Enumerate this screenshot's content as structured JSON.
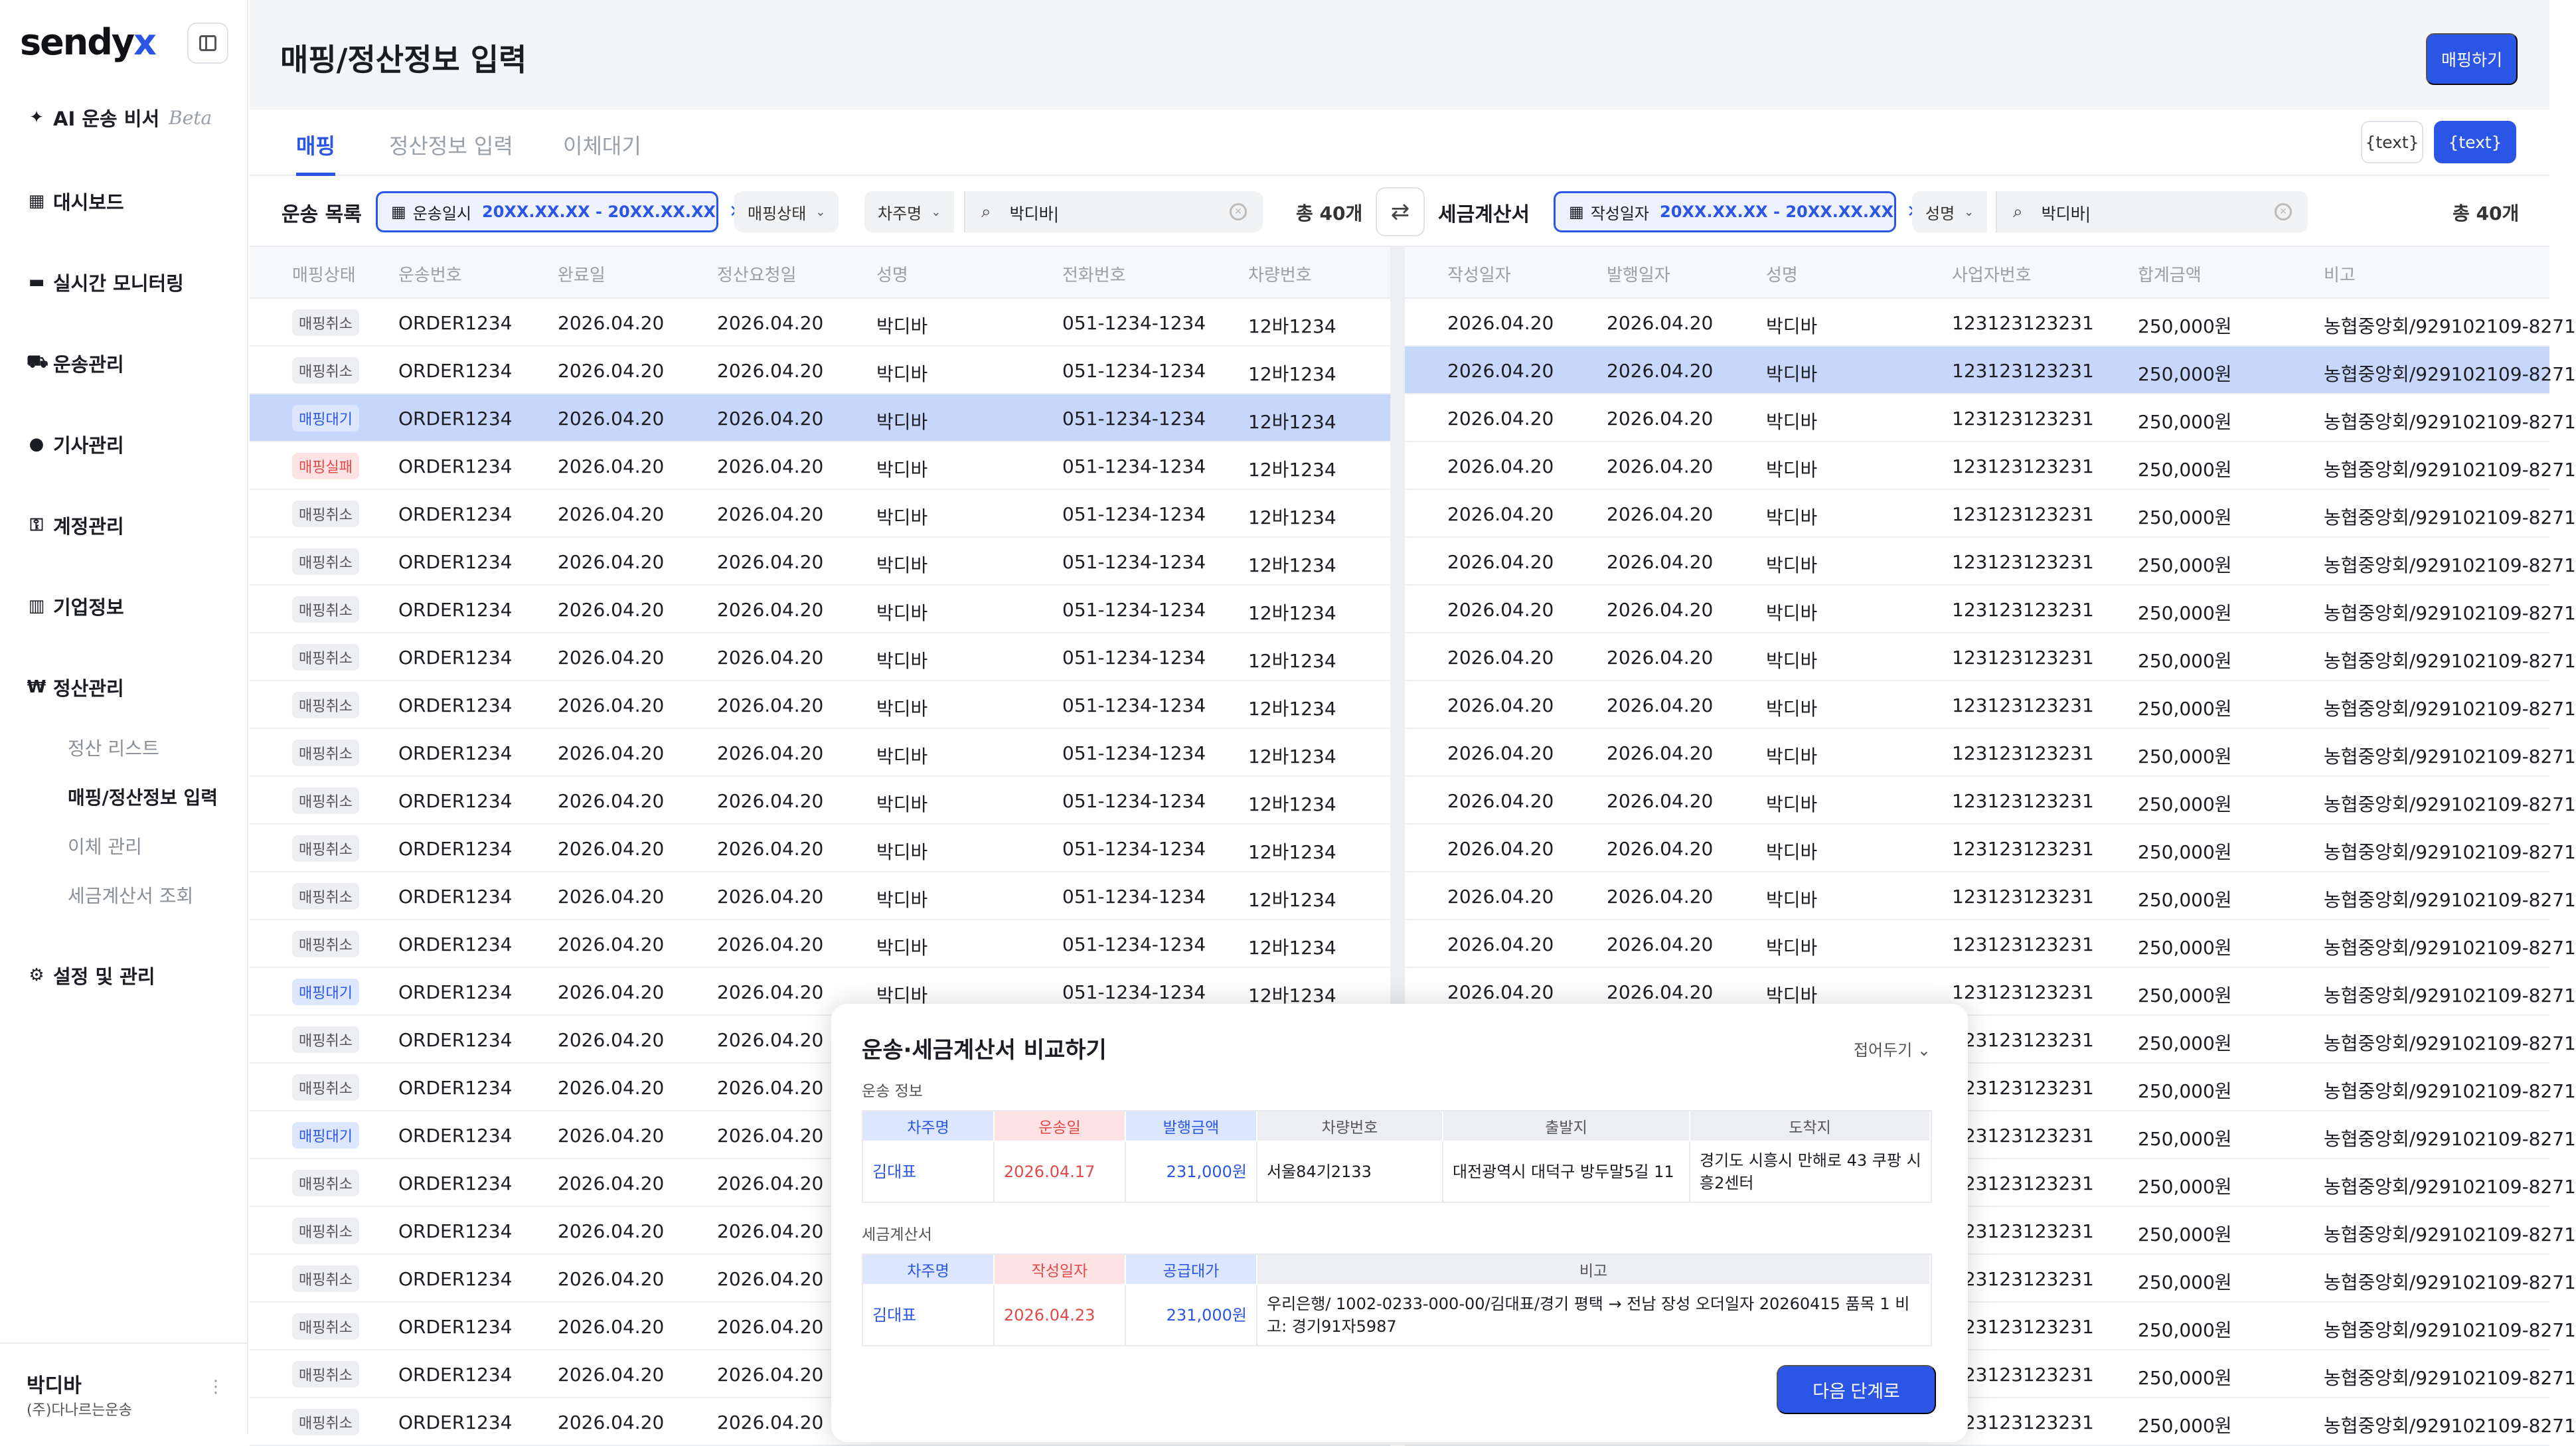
{
  "sidebar": {
    "logo": "sendy",
    "logo_x": "x",
    "nav": [
      {
        "icon": "sparkle-icon",
        "glyph": "✦",
        "label": "AI 운송 비서",
        "beta": "Beta"
      },
      {
        "icon": "dashboard-icon",
        "glyph": "▦",
        "label": "대시보드"
      },
      {
        "icon": "monitor-icon",
        "glyph": "▬",
        "label": "실시간 모니터링"
      },
      {
        "icon": "truck-icon",
        "glyph": "⛟",
        "label": "운송관리"
      },
      {
        "icon": "person-icon",
        "glyph": "●",
        "label": "기사관리"
      },
      {
        "icon": "key-icon",
        "glyph": "⚿",
        "label": "계정관리"
      },
      {
        "icon": "building-icon",
        "glyph": "▥",
        "label": "기업정보"
      },
      {
        "icon": "won-icon",
        "glyph": "₩",
        "label": "정산관리"
      },
      {
        "icon": "gear-icon",
        "glyph": "⚙",
        "label": "설정 및 관리"
      }
    ],
    "sub_items": [
      "정산 리스트",
      "매핑/정산정보 입력",
      "이체 관리",
      "세금계산서 조회"
    ],
    "user": {
      "name": "박디바",
      "org": "(주)다나르는운송",
      "more": "⋮"
    }
  },
  "header": {
    "title": "매핑/정산정보 입력",
    "map_button": "매핑하기"
  },
  "tabs": [
    "매핑",
    "정산정보 입력",
    "이체대기"
  ],
  "tab_buttons": [
    "{text}",
    "{text}"
  ],
  "left": {
    "title": "운송 목록",
    "date_label": "운송일시",
    "date_value": "20XX.XX.XX - 20XX.XX.XX",
    "filter1": "매핑상태",
    "filter2": "차주명",
    "search_value": "박디바|",
    "count": "총 40개",
    "columns": [
      "매핑상태",
      "운송번호",
      "완료일",
      "정산요청일",
      "성명",
      "전화번호",
      "차량번호"
    ],
    "row_values": {
      "order": "ORDER1234",
      "done": "2026.04.20",
      "req": "2026.04.20",
      "name": "박디바",
      "phone": "051-1234-1234",
      "car": "12바1234"
    },
    "statuses": [
      "매핑취소",
      "매핑취소",
      "매핑대기",
      "매핑실패",
      "매핑취소",
      "매핑취소",
      "매핑취소",
      "매핑취소",
      "매핑취소",
      "매핑취소",
      "매핑취소",
      "매핑취소",
      "매핑취소",
      "매핑취소",
      "매핑대기",
      "매핑취소",
      "매핑취소",
      "매핑대기",
      "매핑취소",
      "매핑취소",
      "매핑취소",
      "매핑취소",
      "매핑취소",
      "매핑취소"
    ],
    "selected_row": 2
  },
  "right": {
    "title": "세금계산서",
    "date_label": "작성일자",
    "date_value": "20XX.XX.XX - 20XX.XX.XX",
    "filter1": "성명",
    "search_value": "박디바|",
    "count": "총 40개",
    "columns": [
      "작성일자",
      "발행일자",
      "성명",
      "사업자번호",
      "합계금액",
      "비고"
    ],
    "row_values": {
      "write": "2026.04.20",
      "issue": "2026.04.20",
      "name": "박디바",
      "biz": "123123123231",
      "sum": "250,000원",
      "note": "농협중앙회/929102109-8271"
    },
    "row_count": 24,
    "selected_row": 1
  },
  "compare": {
    "title": "운송·세금계산서 비교하기",
    "fold": "접어두기",
    "transport_label": "운송 정보",
    "transport_headers": [
      "차주명",
      "운송일",
      "발행금액",
      "차량번호",
      "출발지",
      "도착지"
    ],
    "transport_values": [
      "김대표",
      "2026.04.17",
      "231,000원",
      "서울84기2133",
      "대전광역시 대덕구 방두말5길 11",
      "경기도 시흥시 만해로 43 쿠팡 시흥2센터"
    ],
    "tax_label": "세금계산서",
    "tax_headers": [
      "차주명",
      "작성일자",
      "공급대가",
      "비고"
    ],
    "tax_values": [
      "김대표",
      "2026.04.23",
      "231,000원",
      "우리은행/ 1002-0233-000-00/김대표/경기 평택 → 전남 장성 오더일자 20260415 품목 1 비고: 경기91자5987"
    ],
    "next_button": "다음 단계로"
  },
  "colors": {
    "accent": "#2a55e5",
    "wait": "#2a55e5",
    "fail": "#e24a4a"
  }
}
